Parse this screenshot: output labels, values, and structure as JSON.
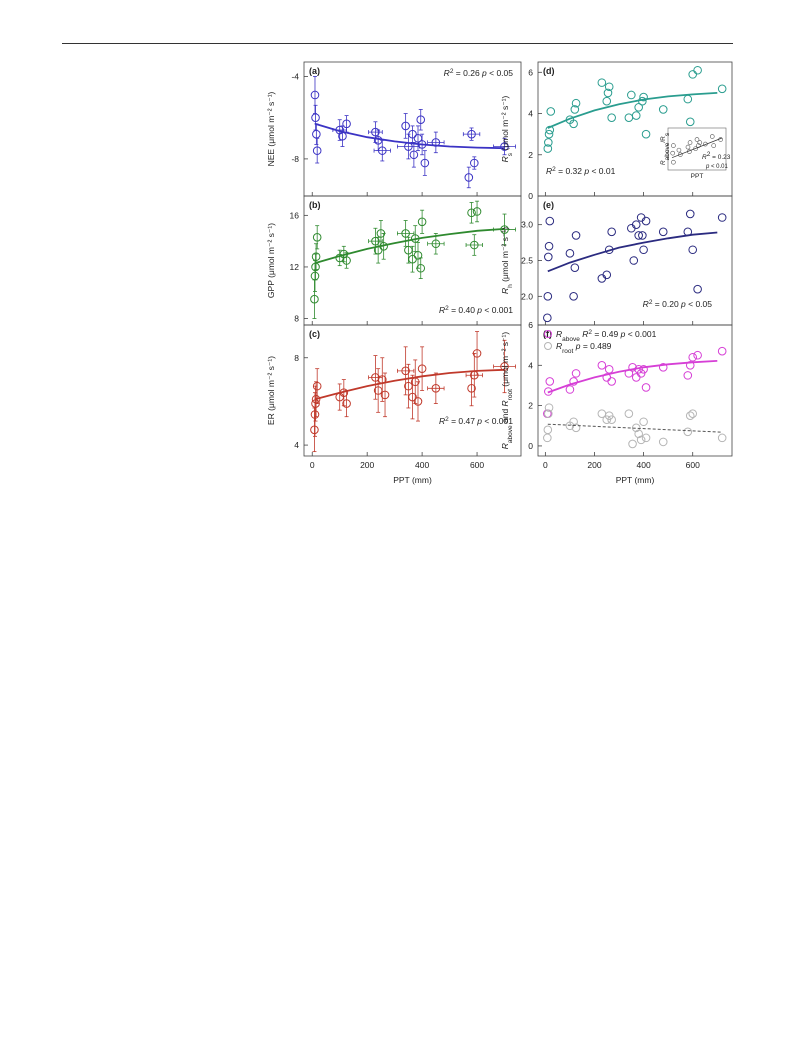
{
  "figure": {
    "xlabel": "PPT (mm)",
    "x_ticks": [
      0,
      200,
      400,
      600
    ],
    "xlim": [
      -30,
      760
    ]
  },
  "chart_data": [
    {
      "id": "a",
      "panel_label": "(a)",
      "type": "scatter",
      "ylabel": "NEE (μmol m⁻² s⁻¹)",
      "ylim": [
        -9.8,
        -3.3
      ],
      "y_ticks": [
        -4,
        -8
      ],
      "color": "#3b33c4",
      "stats": {
        "r2": "0.26",
        "p": "p < 0.05"
      },
      "fit": {
        "x": [
          10,
          100,
          200,
          300,
          400,
          500,
          600,
          700
        ],
        "y": [
          -6.3,
          -6.65,
          -6.95,
          -7.15,
          -7.3,
          -7.4,
          -7.45,
          -7.48
        ]
      },
      "points": [
        {
          "x": 10,
          "y": -4.9,
          "ye": 0.9
        },
        {
          "x": 12,
          "y": -6.0,
          "ye": 0.6
        },
        {
          "x": 15,
          "y": -6.8,
          "ye": 0.5
        },
        {
          "x": 18,
          "y": -7.6,
          "ye": 0.6
        },
        {
          "x": 100,
          "y": -6.6,
          "ye": 0.5,
          "xe": 25
        },
        {
          "x": 110,
          "y": -6.9,
          "ye": 0.5
        },
        {
          "x": 125,
          "y": -6.3,
          "ye": 0.4
        },
        {
          "x": 230,
          "y": -6.7,
          "ye": 0.5,
          "xe": 25
        },
        {
          "x": 240,
          "y": -7.1,
          "ye": 0.5
        },
        {
          "x": 255,
          "y": -7.6,
          "ye": 0.5,
          "xe": 30
        },
        {
          "x": 340,
          "y": -6.4,
          "ye": 0.6
        },
        {
          "x": 350,
          "y": -7.4,
          "ye": 0.6,
          "xe": 40
        },
        {
          "x": 365,
          "y": -6.8,
          "ye": 0.4
        },
        {
          "x": 370,
          "y": -7.8,
          "ye": 0.6
        },
        {
          "x": 385,
          "y": -7.0,
          "ye": 0.6
        },
        {
          "x": 395,
          "y": -6.1,
          "ye": 0.5
        },
        {
          "x": 400,
          "y": -7.3,
          "ye": 0.5
        },
        {
          "x": 410,
          "y": -8.2,
          "ye": 0.6
        },
        {
          "x": 450,
          "y": -7.2,
          "ye": 0.5,
          "xe": 30
        },
        {
          "x": 570,
          "y": -8.9,
          "ye": 0.5
        },
        {
          "x": 580,
          "y": -6.8,
          "ye": 0.3,
          "xe": 30
        },
        {
          "x": 590,
          "y": -8.2,
          "ye": 0.3
        },
        {
          "x": 700,
          "y": -7.4,
          "ye": 0.4,
          "xe": 40
        }
      ]
    },
    {
      "id": "b",
      "panel_label": "(b)",
      "type": "scatter",
      "ylabel": "GPP (μmol m⁻² s⁻¹)",
      "ylim": [
        7.5,
        17.5
      ],
      "y_ticks": [
        8,
        12,
        16
      ],
      "color": "#2f8a2f",
      "stats": {
        "r2": "0.40",
        "p": "p < 0.001"
      },
      "fit": {
        "x": [
          10,
          100,
          200,
          300,
          400,
          500,
          600,
          700
        ],
        "y": [
          12.3,
          12.85,
          13.4,
          13.85,
          14.25,
          14.55,
          14.8,
          14.95
        ]
      },
      "points": [
        {
          "x": 8,
          "y": 9.5,
          "ye": 1.5
        },
        {
          "x": 10,
          "y": 11.3,
          "ye": 1.2
        },
        {
          "x": 12,
          "y": 12.0,
          "ye": 1.0
        },
        {
          "x": 14,
          "y": 12.8,
          "ye": 1.0
        },
        {
          "x": 18,
          "y": 14.3,
          "ye": 0.9
        },
        {
          "x": 100,
          "y": 12.7,
          "ye": 0.6
        },
        {
          "x": 115,
          "y": 13.0,
          "ye": 0.6
        },
        {
          "x": 125,
          "y": 12.5,
          "ye": 0.6
        },
        {
          "x": 230,
          "y": 14.0,
          "ye": 1.0,
          "xe": 25
        },
        {
          "x": 240,
          "y": 13.3,
          "ye": 1.0
        },
        {
          "x": 250,
          "y": 14.6,
          "ye": 1.0
        },
        {
          "x": 260,
          "y": 13.6,
          "ye": 1.0
        },
        {
          "x": 340,
          "y": 14.6,
          "ye": 1.0,
          "xe": 30
        },
        {
          "x": 350,
          "y": 13.3,
          "ye": 1.0
        },
        {
          "x": 365,
          "y": 12.6,
          "ye": 1.0
        },
        {
          "x": 375,
          "y": 14.2,
          "ye": 1.0
        },
        {
          "x": 385,
          "y": 12.9,
          "ye": 1.0
        },
        {
          "x": 395,
          "y": 11.9,
          "ye": 0.8
        },
        {
          "x": 400,
          "y": 15.5,
          "ye": 0.9
        },
        {
          "x": 450,
          "y": 13.8,
          "ye": 0.8,
          "xe": 30
        },
        {
          "x": 580,
          "y": 16.2,
          "ye": 0.8
        },
        {
          "x": 590,
          "y": 13.7,
          "ye": 0.8,
          "xe": 30
        },
        {
          "x": 600,
          "y": 16.3,
          "ye": 0.8
        },
        {
          "x": 700,
          "y": 14.9,
          "ye": 1.2,
          "xe": 40
        }
      ]
    },
    {
      "id": "c",
      "panel_label": "(c)",
      "type": "scatter",
      "ylabel": "ER (μmol m⁻² s⁻¹)",
      "ylim": [
        3.5,
        9.5
      ],
      "y_ticks": [
        4,
        8
      ],
      "color": "#c0392b",
      "stats": {
        "r2": "0.47",
        "p": "p < 0.001"
      },
      "fit": {
        "x": [
          10,
          100,
          200,
          300,
          400,
          500,
          600,
          700
        ],
        "y": [
          6.1,
          6.4,
          6.7,
          6.95,
          7.15,
          7.3,
          7.4,
          7.45
        ]
      },
      "points": [
        {
          "x": 8,
          "y": 4.7,
          "ye": 1.0
        },
        {
          "x": 10,
          "y": 5.4,
          "ye": 1.0
        },
        {
          "x": 12,
          "y": 5.9,
          "ye": 0.8
        },
        {
          "x": 14,
          "y": 6.1,
          "ye": 0.8
        },
        {
          "x": 18,
          "y": 6.7,
          "ye": 0.8
        },
        {
          "x": 100,
          "y": 6.2,
          "ye": 0.6
        },
        {
          "x": 115,
          "y": 6.4,
          "ye": 0.6
        },
        {
          "x": 125,
          "y": 5.9,
          "ye": 0.6
        },
        {
          "x": 230,
          "y": 7.1,
          "ye": 1.0,
          "xe": 25
        },
        {
          "x": 240,
          "y": 6.5,
          "ye": 1.0
        },
        {
          "x": 255,
          "y": 7.0,
          "ye": 1.0
        },
        {
          "x": 265,
          "y": 6.3,
          "ye": 1.0
        },
        {
          "x": 340,
          "y": 7.4,
          "ye": 1.1,
          "xe": 30
        },
        {
          "x": 350,
          "y": 6.7,
          "ye": 1.0
        },
        {
          "x": 365,
          "y": 6.2,
          "ye": 1.0
        },
        {
          "x": 375,
          "y": 6.9,
          "ye": 1.0
        },
        {
          "x": 385,
          "y": 6.0,
          "ye": 0.9
        },
        {
          "x": 400,
          "y": 7.5,
          "ye": 1.0
        },
        {
          "x": 450,
          "y": 6.6,
          "ye": 0.7,
          "xe": 30
        },
        {
          "x": 580,
          "y": 6.6,
          "ye": 0.8
        },
        {
          "x": 590,
          "y": 7.2,
          "ye": 1.0,
          "xe": 30
        },
        {
          "x": 600,
          "y": 8.2,
          "ye": 1.0
        },
        {
          "x": 700,
          "y": 7.6,
          "ye": 1.2,
          "xe": 40
        }
      ]
    },
    {
      "id": "d",
      "panel_label": "(d)",
      "type": "scatter",
      "ylabel_main": "R",
      "ylabel_sub": "s",
      "ylabel_unit": " (μmol m⁻² s⁻¹)",
      "ylim": [
        0,
        6.5
      ],
      "y_ticks": [
        0,
        2,
        4,
        6
      ],
      "color": "#2a9d8f",
      "stats": {
        "r2": "0.32",
        "p": "p < 0.01"
      },
      "fit": {
        "x": [
          10,
          100,
          200,
          300,
          400,
          500,
          600,
          700
        ],
        "y": [
          3.3,
          3.75,
          4.15,
          4.45,
          4.68,
          4.83,
          4.93,
          5.0
        ]
      },
      "points": [
        {
          "x": 10,
          "y": 2.3
        },
        {
          "x": 12,
          "y": 2.6
        },
        {
          "x": 15,
          "y": 3.0
        },
        {
          "x": 18,
          "y": 3.2
        },
        {
          "x": 22,
          "y": 4.1
        },
        {
          "x": 100,
          "y": 3.7
        },
        {
          "x": 115,
          "y": 3.5
        },
        {
          "x": 120,
          "y": 4.2
        },
        {
          "x": 125,
          "y": 4.5
        },
        {
          "x": 230,
          "y": 5.5
        },
        {
          "x": 250,
          "y": 4.6
        },
        {
          "x": 255,
          "y": 5.0
        },
        {
          "x": 260,
          "y": 5.3
        },
        {
          "x": 270,
          "y": 3.8
        },
        {
          "x": 340,
          "y": 3.8
        },
        {
          "x": 350,
          "y": 4.9
        },
        {
          "x": 370,
          "y": 3.9
        },
        {
          "x": 380,
          "y": 4.3
        },
        {
          "x": 395,
          "y": 4.6
        },
        {
          "x": 400,
          "y": 4.8
        },
        {
          "x": 410,
          "y": 3.0
        },
        {
          "x": 480,
          "y": 4.2
        },
        {
          "x": 580,
          "y": 4.7
        },
        {
          "x": 590,
          "y": 3.6
        },
        {
          "x": 600,
          "y": 5.9
        },
        {
          "x": 620,
          "y": 6.1
        },
        {
          "x": 720,
          "y": 5.2
        }
      ],
      "inset": {
        "ylabel_main": "R",
        "ylabel_sub": "above",
        "ylabel_sep": "/R",
        "ylabel_sub2": "s",
        "xlabel": "PPT",
        "r2": "0.23",
        "p": "p < 0.01",
        "fit": {
          "x": [
            0,
            720
          ],
          "y": [
            0.56,
            0.82
          ]
        },
        "points": [
          {
            "x": 10,
            "y": 0.62
          },
          {
            "x": 20,
            "y": 0.72
          },
          {
            "x": 100,
            "y": 0.66
          },
          {
            "x": 120,
            "y": 0.6
          },
          {
            "x": 230,
            "y": 0.7
          },
          {
            "x": 250,
            "y": 0.64
          },
          {
            "x": 260,
            "y": 0.76
          },
          {
            "x": 340,
            "y": 0.68
          },
          {
            "x": 360,
            "y": 0.8
          },
          {
            "x": 380,
            "y": 0.72
          },
          {
            "x": 400,
            "y": 0.76
          },
          {
            "x": 480,
            "y": 0.74
          },
          {
            "x": 580,
            "y": 0.84
          },
          {
            "x": 600,
            "y": 0.72
          },
          {
            "x": 700,
            "y": 0.8
          },
          {
            "x": 20,
            "y": 0.5
          }
        ]
      }
    },
    {
      "id": "e",
      "panel_label": "(e)",
      "type": "scatter",
      "ylabel_main": "R",
      "ylabel_sub": "h",
      "ylabel_unit": " (μmol m⁻² s⁻¹)",
      "ylim": [
        1.6,
        3.4
      ],
      "y_ticks": [
        2.0,
        2.5,
        3.0
      ],
      "y_tick_labels": [
        "2.0",
        "2.5",
        "3.0"
      ],
      "color": "#2b2b80",
      "stats": {
        "r2": "0.20",
        "p": "p < 0.05"
      },
      "fit": {
        "x": [
          10,
          100,
          200,
          300,
          400,
          500,
          600,
          700
        ],
        "y": [
          2.35,
          2.47,
          2.58,
          2.68,
          2.75,
          2.81,
          2.86,
          2.89
        ]
      },
      "points": [
        {
          "x": 8,
          "y": 1.7
        },
        {
          "x": 10,
          "y": 2.0
        },
        {
          "x": 12,
          "y": 2.55
        },
        {
          "x": 15,
          "y": 2.7
        },
        {
          "x": 18,
          "y": 3.05
        },
        {
          "x": 100,
          "y": 2.6
        },
        {
          "x": 115,
          "y": 2.0
        },
        {
          "x": 120,
          "y": 2.4
        },
        {
          "x": 125,
          "y": 2.85
        },
        {
          "x": 230,
          "y": 2.25
        },
        {
          "x": 250,
          "y": 2.3
        },
        {
          "x": 260,
          "y": 2.65
        },
        {
          "x": 270,
          "y": 2.9
        },
        {
          "x": 350,
          "y": 2.95
        },
        {
          "x": 360,
          "y": 2.5
        },
        {
          "x": 370,
          "y": 3.0
        },
        {
          "x": 380,
          "y": 2.85
        },
        {
          "x": 390,
          "y": 3.1
        },
        {
          "x": 395,
          "y": 2.85
        },
        {
          "x": 400,
          "y": 2.65
        },
        {
          "x": 410,
          "y": 3.05
        },
        {
          "x": 480,
          "y": 2.9
        },
        {
          "x": 580,
          "y": 2.9
        },
        {
          "x": 590,
          "y": 3.15
        },
        {
          "x": 600,
          "y": 2.65
        },
        {
          "x": 620,
          "y": 2.1
        },
        {
          "x": 720,
          "y": 3.1
        }
      ]
    },
    {
      "id": "f",
      "panel_label": "(f)",
      "type": "scatter",
      "ylabel": "R_above and R_root (μmol m⁻² s⁻¹)",
      "ylim": [
        -0.5,
        6
      ],
      "y_ticks": [
        0,
        2,
        4,
        6
      ],
      "series": [
        {
          "name_main": "R",
          "name_sub": "above",
          "stats_r2": "0.49",
          "stats_p": "p < 0.001",
          "color": "#d63fd6",
          "fit": {
            "x": [
              10,
              100,
              200,
              300,
              400,
              500,
              600,
              700
            ],
            "y": [
              2.65,
              3.05,
              3.4,
              3.68,
              3.9,
              4.05,
              4.15,
              4.22
            ]
          },
          "points": [
            {
              "x": 8,
              "y": 1.6
            },
            {
              "x": 12,
              "y": 2.7
            },
            {
              "x": 18,
              "y": 3.2
            },
            {
              "x": 100,
              "y": 2.8
            },
            {
              "x": 115,
              "y": 3.2
            },
            {
              "x": 125,
              "y": 3.6
            },
            {
              "x": 230,
              "y": 4.0
            },
            {
              "x": 250,
              "y": 3.4
            },
            {
              "x": 260,
              "y": 3.8
            },
            {
              "x": 270,
              "y": 3.2
            },
            {
              "x": 340,
              "y": 3.6
            },
            {
              "x": 355,
              "y": 3.9
            },
            {
              "x": 370,
              "y": 3.4
            },
            {
              "x": 380,
              "y": 3.8
            },
            {
              "x": 390,
              "y": 3.6
            },
            {
              "x": 400,
              "y": 3.8
            },
            {
              "x": 410,
              "y": 2.9
            },
            {
              "x": 480,
              "y": 3.9
            },
            {
              "x": 580,
              "y": 3.5
            },
            {
              "x": 590,
              "y": 4.0
            },
            {
              "x": 600,
              "y": 4.4
            },
            {
              "x": 620,
              "y": 4.5
            },
            {
              "x": 720,
              "y": 4.7
            }
          ]
        },
        {
          "name_main": "R",
          "name_sub": "root",
          "stats_r2": "",
          "stats_p": "p = 0.489",
          "color": "#b5b5b5",
          "dashed": true,
          "fit": {
            "x": [
              10,
              720
            ],
            "y": [
              1.08,
              0.68
            ]
          },
          "points": [
            {
              "x": 8,
              "y": 0.4
            },
            {
              "x": 10,
              "y": 0.8
            },
            {
              "x": 12,
              "y": 1.6
            },
            {
              "x": 15,
              "y": 1.9
            },
            {
              "x": 100,
              "y": 1.0
            },
            {
              "x": 115,
              "y": 1.2
            },
            {
              "x": 125,
              "y": 0.9
            },
            {
              "x": 230,
              "y": 1.6
            },
            {
              "x": 250,
              "y": 1.3
            },
            {
              "x": 260,
              "y": 1.5
            },
            {
              "x": 270,
              "y": 1.3
            },
            {
              "x": 340,
              "y": 1.6
            },
            {
              "x": 355,
              "y": 0.1
            },
            {
              "x": 370,
              "y": 0.9
            },
            {
              "x": 380,
              "y": 0.6
            },
            {
              "x": 390,
              "y": 0.3
            },
            {
              "x": 400,
              "y": 1.2
            },
            {
              "x": 410,
              "y": 0.4
            },
            {
              "x": 480,
              "y": 0.2
            },
            {
              "x": 580,
              "y": 0.7
            },
            {
              "x": 590,
              "y": 1.5
            },
            {
              "x": 600,
              "y": 1.6
            },
            {
              "x": 720,
              "y": 0.4
            }
          ]
        }
      ]
    }
  ]
}
